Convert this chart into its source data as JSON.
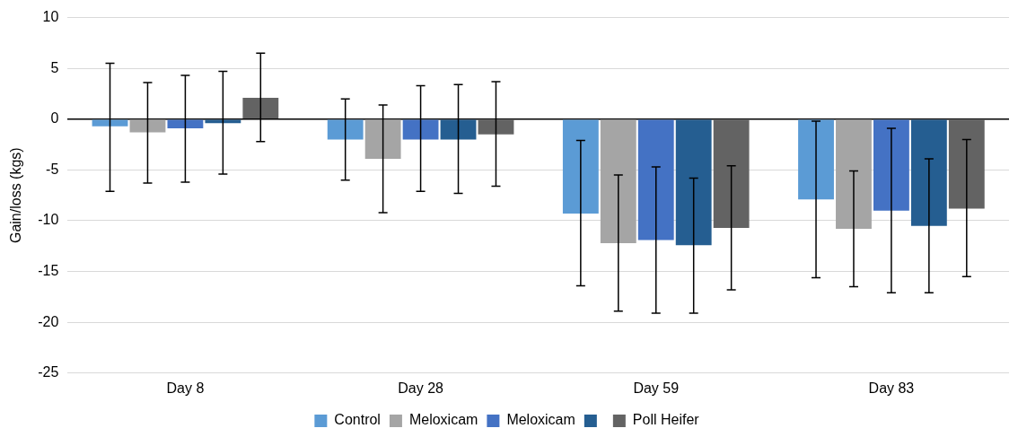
{
  "chart_data": {
    "type": "bar",
    "ylabel": "Gain/loss (kgs)",
    "categories": [
      "Day 8",
      "Day 28",
      "Day 59",
      "Day 83"
    ],
    "ylim": [
      -25,
      10
    ],
    "yticks": [
      -25,
      -20,
      -15,
      -10,
      -5,
      0,
      5,
      10
    ],
    "grid": "y",
    "legend": "bottom",
    "series": [
      {
        "name": "Control",
        "color": "#5b9bd5",
        "values": [
          -0.7,
          -2.0,
          -9.3,
          -7.9
        ],
        "errors": [
          [
            -7.1,
            5.5
          ],
          [
            -6.0,
            2.0
          ],
          [
            -16.4,
            -2.1
          ],
          [
            -15.6,
            -0.2
          ]
        ]
      },
      {
        "name": "Meloxicam",
        "color": "#a5a5a5",
        "values": [
          -1.3,
          -3.9,
          -12.2,
          -10.8
        ],
        "errors": [
          [
            -6.3,
            3.6
          ],
          [
            -9.2,
            1.4
          ],
          [
            -18.9,
            -5.5
          ],
          [
            -16.5,
            -5.1
          ]
        ]
      },
      {
        "name": "Meloxicam",
        "color": "#4472c4",
        "values": [
          -0.9,
          -2.0,
          -11.9,
          -9.0
        ],
        "errors": [
          [
            -6.2,
            4.3
          ],
          [
            -7.1,
            3.3
          ],
          [
            -19.1,
            -4.7
          ],
          [
            -17.1,
            -0.9
          ]
        ]
      },
      {
        "color": "#255e91",
        "values": [
          -0.4,
          -2.0,
          -12.4,
          -10.5
        ],
        "errors": [
          [
            -5.4,
            4.7
          ],
          [
            -7.3,
            3.4
          ],
          [
            -19.1,
            -5.8
          ],
          [
            -17.1,
            -3.9
          ]
        ]
      },
      {
        "name": "Poll Heifer",
        "color": "#636363",
        "values": [
          2.1,
          -1.5,
          -10.7,
          -8.8
        ],
        "errors": [
          [
            -2.2,
            6.5
          ],
          [
            -6.6,
            3.7
          ],
          [
            -16.8,
            -4.6
          ],
          [
            -15.5,
            -2.0
          ]
        ]
      }
    ]
  }
}
